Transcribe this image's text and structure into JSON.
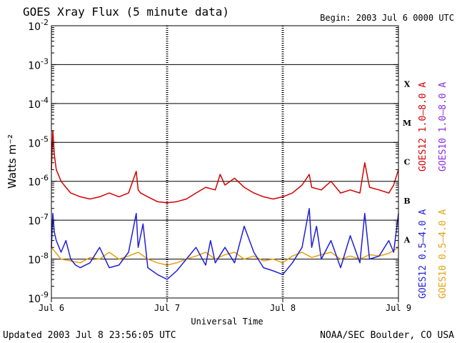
{
  "title": "GOES Xray Flux (5 minute data)",
  "begin": "Begin:  2003 Jul 6 0000 UTC",
  "updated": "Updated 2003 Jul  8 23:56:05 UTC",
  "credit": "NOAA/SEC Boulder, CO USA",
  "chart_data": {
    "type": "line",
    "title": "GOES Xray Flux (5 minute data)",
    "xlabel": "Universal Time",
    "ylabel": "Watts m⁻²",
    "y_scale": "log",
    "ylim": [
      1e-09,
      0.01
    ],
    "y_ticks": [
      {
        "value": 0.01,
        "base": "10",
        "exp": "-2"
      },
      {
        "value": 0.001,
        "base": "10",
        "exp": "-3"
      },
      {
        "value": 0.0001,
        "base": "10",
        "exp": "-4"
      },
      {
        "value": 1e-05,
        "base": "10",
        "exp": "-5"
      },
      {
        "value": 1e-06,
        "base": "10",
        "exp": "-6"
      },
      {
        "value": 1e-07,
        "base": "10",
        "exp": "-7"
      },
      {
        "value": 1e-08,
        "base": "10",
        "exp": "-8"
      },
      {
        "value": 1e-09,
        "base": "10",
        "exp": "-9"
      }
    ],
    "x_unit": "hours since 2003 Jul 6 0000 UTC",
    "xlim": [
      0,
      72
    ],
    "x_ticks": [
      {
        "value": 0,
        "label": "Jul 6"
      },
      {
        "value": 24,
        "label": "Jul 7"
      },
      {
        "value": 48,
        "label": "Jul 8"
      },
      {
        "value": 72,
        "label": "Jul 9"
      }
    ],
    "flare_classes": [
      {
        "label": "X",
        "level": 0.0001
      },
      {
        "label": "M",
        "level": 1e-05
      },
      {
        "label": "C",
        "level": 1e-06
      },
      {
        "label": "B",
        "level": 1e-07
      },
      {
        "label": "A",
        "level": 1e-08
      }
    ],
    "grid_lines": [
      0.001,
      0.0001,
      1e-05,
      1e-06,
      1e-07,
      1e-08
    ],
    "legend_right": [
      {
        "text": "GOES12 1.0–8.0 A",
        "color": "#d40000",
        "bottom_y": 240
      },
      {
        "text": "GOES12 0.5–4.0 A",
        "color": "#1f1fd6",
        "bottom_y": 418
      },
      {
        "text": "GOES10 1.0–8.0 A",
        "color": "#8a2be2",
        "bottom_y": 240
      },
      {
        "text": "GOES10 0.5–4.0 A",
        "color": "#e6a010",
        "bottom_y": 418
      }
    ],
    "series": [
      {
        "name": "GOES12 1.0–8.0 A",
        "color": "#d40000",
        "x": [
          0,
          0.3,
          0.6,
          1,
          2,
          3,
          4,
          6,
          8,
          10,
          12,
          14,
          16,
          17.6,
          18,
          18.5,
          20,
          22,
          24,
          26,
          28,
          30,
          32,
          34,
          35,
          36,
          38,
          40,
          42,
          44,
          46,
          48,
          50,
          52,
          53.5,
          54,
          56,
          58,
          60,
          62,
          64,
          65,
          66,
          68,
          70,
          71,
          72
        ],
        "y": [
          2e-06,
          2e-05,
          5e-06,
          2e-06,
          1e-06,
          7e-07,
          5e-07,
          4e-07,
          3.5e-07,
          4e-07,
          5e-07,
          4e-07,
          5e-07,
          1.8e-06,
          6e-07,
          5e-07,
          4e-07,
          3e-07,
          2.8e-07,
          3e-07,
          3.5e-07,
          5e-07,
          7e-07,
          6e-07,
          1.5e-06,
          8e-07,
          1.2e-06,
          7e-07,
          5e-07,
          4e-07,
          3.5e-07,
          4e-07,
          5e-07,
          8e-07,
          1.5e-06,
          7e-07,
          6e-07,
          1e-06,
          5e-07,
          6e-07,
          5e-07,
          3e-06,
          7e-07,
          6e-07,
          5e-07,
          8e-07,
          2e-06
        ]
      },
      {
        "name": "GOES10 0.5–4.0 A",
        "color": "#e6a010",
        "x": [
          0,
          2,
          4,
          6,
          8,
          10,
          12,
          14,
          16,
          18,
          20,
          22,
          24,
          26,
          28,
          30,
          32,
          34,
          36,
          38,
          40,
          42,
          44,
          46,
          48,
          50,
          52,
          54,
          56,
          58,
          60,
          62,
          64,
          66,
          68,
          70,
          72
        ],
        "y": [
          2e-08,
          1e-08,
          9e-09,
          8e-09,
          1.1e-08,
          1e-08,
          1.5e-08,
          1e-08,
          1.2e-08,
          1.5e-08,
          1e-08,
          8e-09,
          7e-09,
          8e-09,
          1e-08,
          1.2e-08,
          1.5e-08,
          1e-08,
          1.3e-08,
          1.5e-08,
          1e-08,
          1.2e-08,
          9e-09,
          1e-08,
          8e-09,
          1.2e-08,
          1.5e-08,
          1.1e-08,
          1.3e-08,
          1.5e-08,
          1e-08,
          1.2e-08,
          1e-08,
          1.3e-08,
          1.2e-08,
          1.4e-08,
          2e-08
        ]
      },
      {
        "name": "GOES12 0.5–4.0 A",
        "color": "#1f1fd6",
        "x": [
          0,
          0.3,
          0.6,
          1,
          2,
          3,
          4,
          5,
          6,
          8,
          10,
          12,
          14,
          16,
          17.6,
          18,
          19,
          20,
          22,
          24,
          26,
          28,
          30,
          32,
          33,
          34,
          36,
          38,
          40,
          42,
          44,
          46,
          48,
          50,
          52,
          53.5,
          54,
          55,
          56,
          58,
          60,
          62,
          64,
          65,
          66,
          68,
          70,
          71,
          72
        ],
        "y": [
          2e-08,
          1.5e-07,
          5e-08,
          3e-08,
          1.5e-08,
          3e-08,
          1e-08,
          7e-09,
          6e-09,
          8e-09,
          2e-08,
          6e-09,
          7e-09,
          1.5e-08,
          1.5e-07,
          2e-08,
          8e-08,
          6e-09,
          4e-09,
          3e-09,
          5e-09,
          1e-08,
          2e-08,
          7e-09,
          3e-08,
          8e-09,
          2e-08,
          8e-09,
          7e-08,
          1.5e-08,
          6e-09,
          5e-09,
          4e-09,
          8e-09,
          2e-08,
          2e-07,
          2e-08,
          7e-08,
          1e-08,
          3e-08,
          6e-09,
          4e-08,
          8e-09,
          1.5e-07,
          1e-08,
          1.2e-08,
          3e-08,
          1.5e-08,
          1.5e-07
        ]
      }
    ]
  }
}
